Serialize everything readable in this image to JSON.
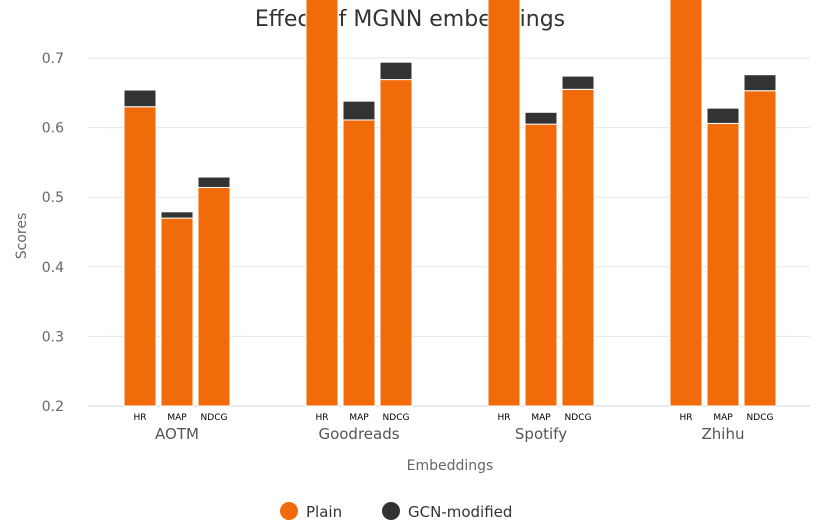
{
  "chart_data": {
    "type": "bar",
    "stacked": true,
    "title": "Effect of MGNN embeddings",
    "xlabel": "Embeddings",
    "ylabel": "Scores",
    "ylim": [
      0.2,
      0.7
    ],
    "yticks": [
      "0.2",
      "0.3",
      "0.4",
      "0.5",
      "0.6",
      "0.7"
    ],
    "groups": [
      "AOTM",
      "Goodreads",
      "Spotify",
      "Zhihu"
    ],
    "metrics": [
      "HR",
      "MAP",
      "NDCG"
    ],
    "series": [
      {
        "name": "Plain",
        "color": "#f26b0a",
        "values": [
          [
            0.43,
            0.27,
            0.314
          ],
          [
            0.615,
            0.411,
            0.469
          ],
          [
            0.609,
            0.405,
            0.455
          ],
          [
            0.597,
            0.406,
            0.453
          ]
        ]
      },
      {
        "name": "GCN-modified",
        "color": "#333333",
        "values": [
          [
            0.024,
            0.009,
            0.015
          ],
          [
            0.043,
            0.027,
            0.025
          ],
          [
            0.019,
            0.017,
            0.019
          ],
          [
            0.021,
            0.022,
            0.023
          ]
        ]
      }
    ],
    "legend_position": "bottom-center",
    "grid": true
  }
}
